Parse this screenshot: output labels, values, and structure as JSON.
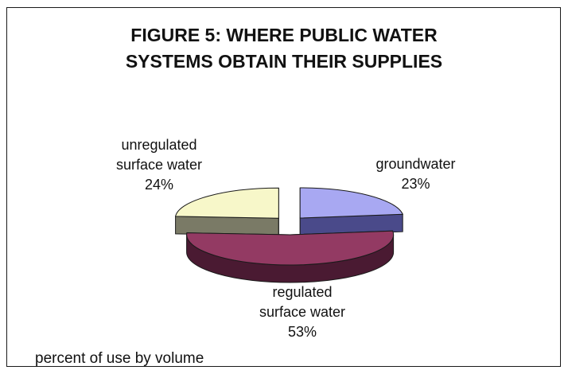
{
  "chart_data": {
    "type": "pie",
    "style": "3d-exploded",
    "title_lines": [
      "FIGURE 5: WHERE PUBLIC WATER",
      "SYSTEMS OBTAIN THEIR SUPPLIES"
    ],
    "slices": [
      {
        "label_lines": [
          "groundwater"
        ],
        "pct_label": "23%",
        "value": 23,
        "color": "#a8a8f2",
        "side_color": "#4a4a8a"
      },
      {
        "label_lines": [
          "regulated",
          "surface water"
        ],
        "pct_label": "53%",
        "value": 53,
        "color": "#933a63",
        "side_color": "#4a1a32"
      },
      {
        "label_lines": [
          "unregulated",
          "surface water"
        ],
        "pct_label": "24%",
        "value": 24,
        "color": "#f7f7c9",
        "side_color": "#7a7a66"
      }
    ],
    "footnote": "percent of use by volume"
  }
}
